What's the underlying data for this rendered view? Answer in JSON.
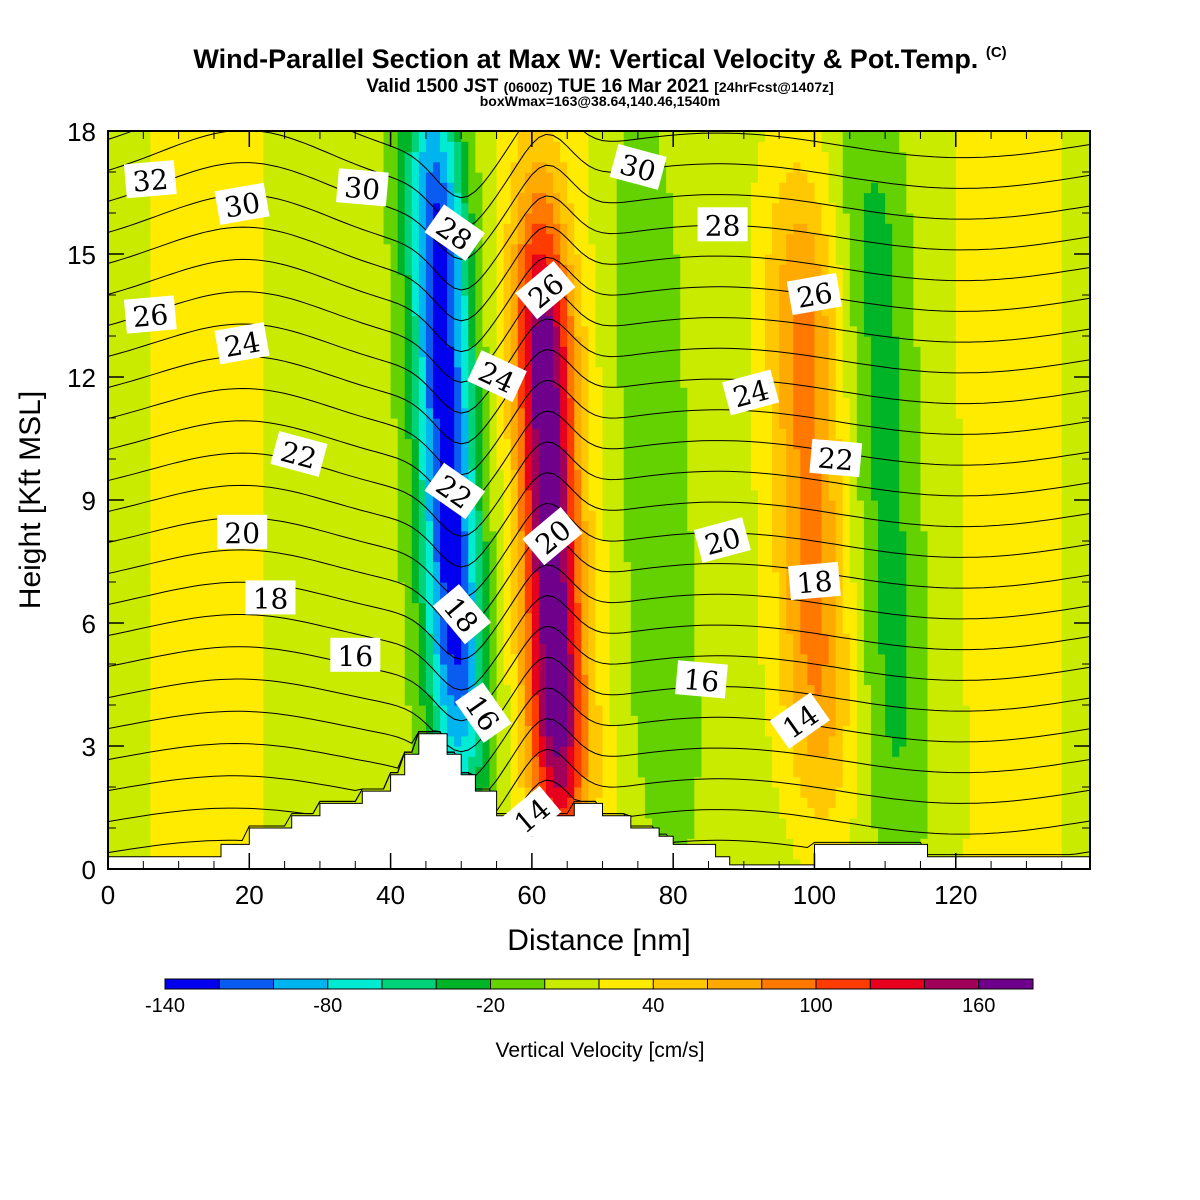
{
  "title": {
    "main": "Wind-Parallel Section at Max W: Vertical Velocity & Pot.Temp.",
    "copyright": "(C)",
    "valid_prefix": "Valid 1500 JST",
    "valid_utc": "(0600Z)",
    "valid_date": "TUE 16 Mar 2021",
    "forecast": "[24hrFcst@1407z]",
    "box_info": "boxWmax=163@38.64,140.46,1540m"
  },
  "chart_data": {
    "type": "heatmap",
    "xlabel": "Distance [nm]",
    "ylabel": "Height [Kft MSL]",
    "xlim": [
      0,
      139
    ],
    "ylim": [
      0,
      18
    ],
    "x_ticks": [
      0,
      20,
      40,
      60,
      80,
      100,
      120
    ],
    "y_ticks": [
      0,
      3,
      6,
      9,
      12,
      15,
      18
    ],
    "fill_variable": "Vertical Velocity [cm/s]",
    "contour_variable": "Potential temperature",
    "colorbar": {
      "label": "Vertical Velocity [cm/s]",
      "levels": [
        -140,
        -120,
        -100,
        -80,
        -60,
        -40,
        -20,
        0,
        20,
        40,
        60,
        80,
        100,
        120,
        140,
        160,
        180
      ],
      "tick_labels": [
        "-140",
        "-80",
        "-20",
        "40",
        "100",
        "160"
      ],
      "tick_values": [
        -140,
        -80,
        -20,
        40,
        100,
        160
      ],
      "colors": [
        "#0000ee",
        "#0a5cf0",
        "#00b4f0",
        "#00ebd2",
        "#00d27a",
        "#00b428",
        "#64d200",
        "#c8eb00",
        "#ffeb00",
        "#ffc800",
        "#ffaa00",
        "#ff7800",
        "#ff3c00",
        "#e6001e",
        "#a0005a",
        "#6e008c"
      ]
    },
    "velocity_features": [
      {
        "name": "downdraft",
        "x": 49,
        "y_min": 3.0,
        "y_max": 18,
        "peak": -140
      },
      {
        "name": "updraft",
        "x": 63,
        "y_min": 1.5,
        "y_max": 15,
        "peak": 163
      },
      {
        "name": "sink band",
        "x": 78,
        "y_min": 1.0,
        "y_max": 18,
        "peak": -40
      },
      {
        "name": "rise band",
        "x": 100,
        "y_min": 2.5,
        "y_max": 16,
        "peak": 80
      },
      {
        "name": "sink band",
        "x": 111,
        "y_min": 1.0,
        "y_max": 18,
        "peak": -40
      }
    ],
    "terrain": {
      "x": [
        0,
        16,
        16,
        20,
        20,
        26,
        26,
        30,
        30,
        36,
        36,
        40,
        40,
        42,
        42,
        44,
        44,
        48,
        48,
        50,
        50,
        52,
        52,
        55,
        55,
        58,
        58,
        60,
        60,
        66,
        66,
        70,
        70,
        74,
        74,
        78,
        78,
        80,
        80,
        86,
        86,
        88,
        88,
        100,
        100,
        104,
        104,
        116,
        116,
        139
      ],
      "height": [
        0.3,
        0.3,
        0.6,
        0.6,
        1.0,
        1.0,
        1.3,
        1.3,
        1.6,
        1.6,
        1.9,
        1.9,
        2.3,
        2.3,
        2.8,
        2.8,
        3.3,
        3.3,
        2.8,
        2.8,
        2.3,
        2.3,
        1.9,
        1.9,
        1.3,
        1.3,
        0.8,
        0.8,
        1.3,
        1.3,
        1.6,
        1.6,
        1.3,
        1.3,
        1.0,
        1.0,
        0.8,
        0.8,
        0.6,
        0.6,
        0.3,
        0.3,
        0.1,
        0.1,
        0.6,
        0.6,
        0.6,
        0.6,
        0.3,
        0.3
      ]
    },
    "theta_contours": [
      {
        "label": "14",
        "label_x": 60,
        "label_y": 1.3,
        "label_angle": -40
      },
      {
        "label": "14",
        "label_x": 98,
        "label_y": 3.6,
        "label_angle": -35
      },
      {
        "label": "16",
        "label_x": 35,
        "label_y": 5.2,
        "label_angle": 0
      },
      {
        "label": "16",
        "label_x": 53,
        "label_y": 3.8,
        "label_angle": 55
      },
      {
        "label": "16",
        "label_x": 84,
        "label_y": 4.6,
        "label_angle": 5
      },
      {
        "label": "18",
        "label_x": 23,
        "label_y": 6.6,
        "label_angle": 0
      },
      {
        "label": "18",
        "label_x": 50,
        "label_y": 6.2,
        "label_angle": 50
      },
      {
        "label": "18",
        "label_x": 100,
        "label_y": 7.0,
        "label_angle": -5
      },
      {
        "label": "20",
        "label_x": 19,
        "label_y": 8.2,
        "label_angle": 0
      },
      {
        "label": "20",
        "label_x": 63,
        "label_y": 8.1,
        "label_angle": -40
      },
      {
        "label": "20",
        "label_x": 87,
        "label_y": 8.0,
        "label_angle": -15
      },
      {
        "label": "22",
        "label_x": 27,
        "label_y": 10.1,
        "label_angle": 15
      },
      {
        "label": "22",
        "label_x": 49,
        "label_y": 9.2,
        "label_angle": 35
      },
      {
        "label": "22",
        "label_x": 103,
        "label_y": 10.0,
        "label_angle": 5
      },
      {
        "label": "24",
        "label_x": 19,
        "label_y": 12.8,
        "label_angle": -10
      },
      {
        "label": "24",
        "label_x": 55,
        "label_y": 12.0,
        "label_angle": 25
      },
      {
        "label": "24",
        "label_x": 91,
        "label_y": 11.6,
        "label_angle": -15
      },
      {
        "label": "26",
        "label_x": 6,
        "label_y": 13.5,
        "label_angle": -5
      },
      {
        "label": "26",
        "label_x": 62,
        "label_y": 14.1,
        "label_angle": -40
      },
      {
        "label": "26",
        "label_x": 100,
        "label_y": 14.0,
        "label_angle": -10
      },
      {
        "label": "28",
        "label_x": 49,
        "label_y": 15.5,
        "label_angle": 35
      },
      {
        "label": "28",
        "label_x": 87,
        "label_y": 15.7,
        "label_angle": 0
      },
      {
        "label": "30",
        "label_x": 19,
        "label_y": 16.2,
        "label_angle": -10
      },
      {
        "label": "30",
        "label_x": 36,
        "label_y": 16.6,
        "label_angle": 5
      },
      {
        "label": "30",
        "label_x": 75,
        "label_y": 17.1,
        "label_angle": 15
      },
      {
        "label": "32",
        "label_x": 6,
        "label_y": 16.8,
        "label_angle": -5
      }
    ]
  }
}
